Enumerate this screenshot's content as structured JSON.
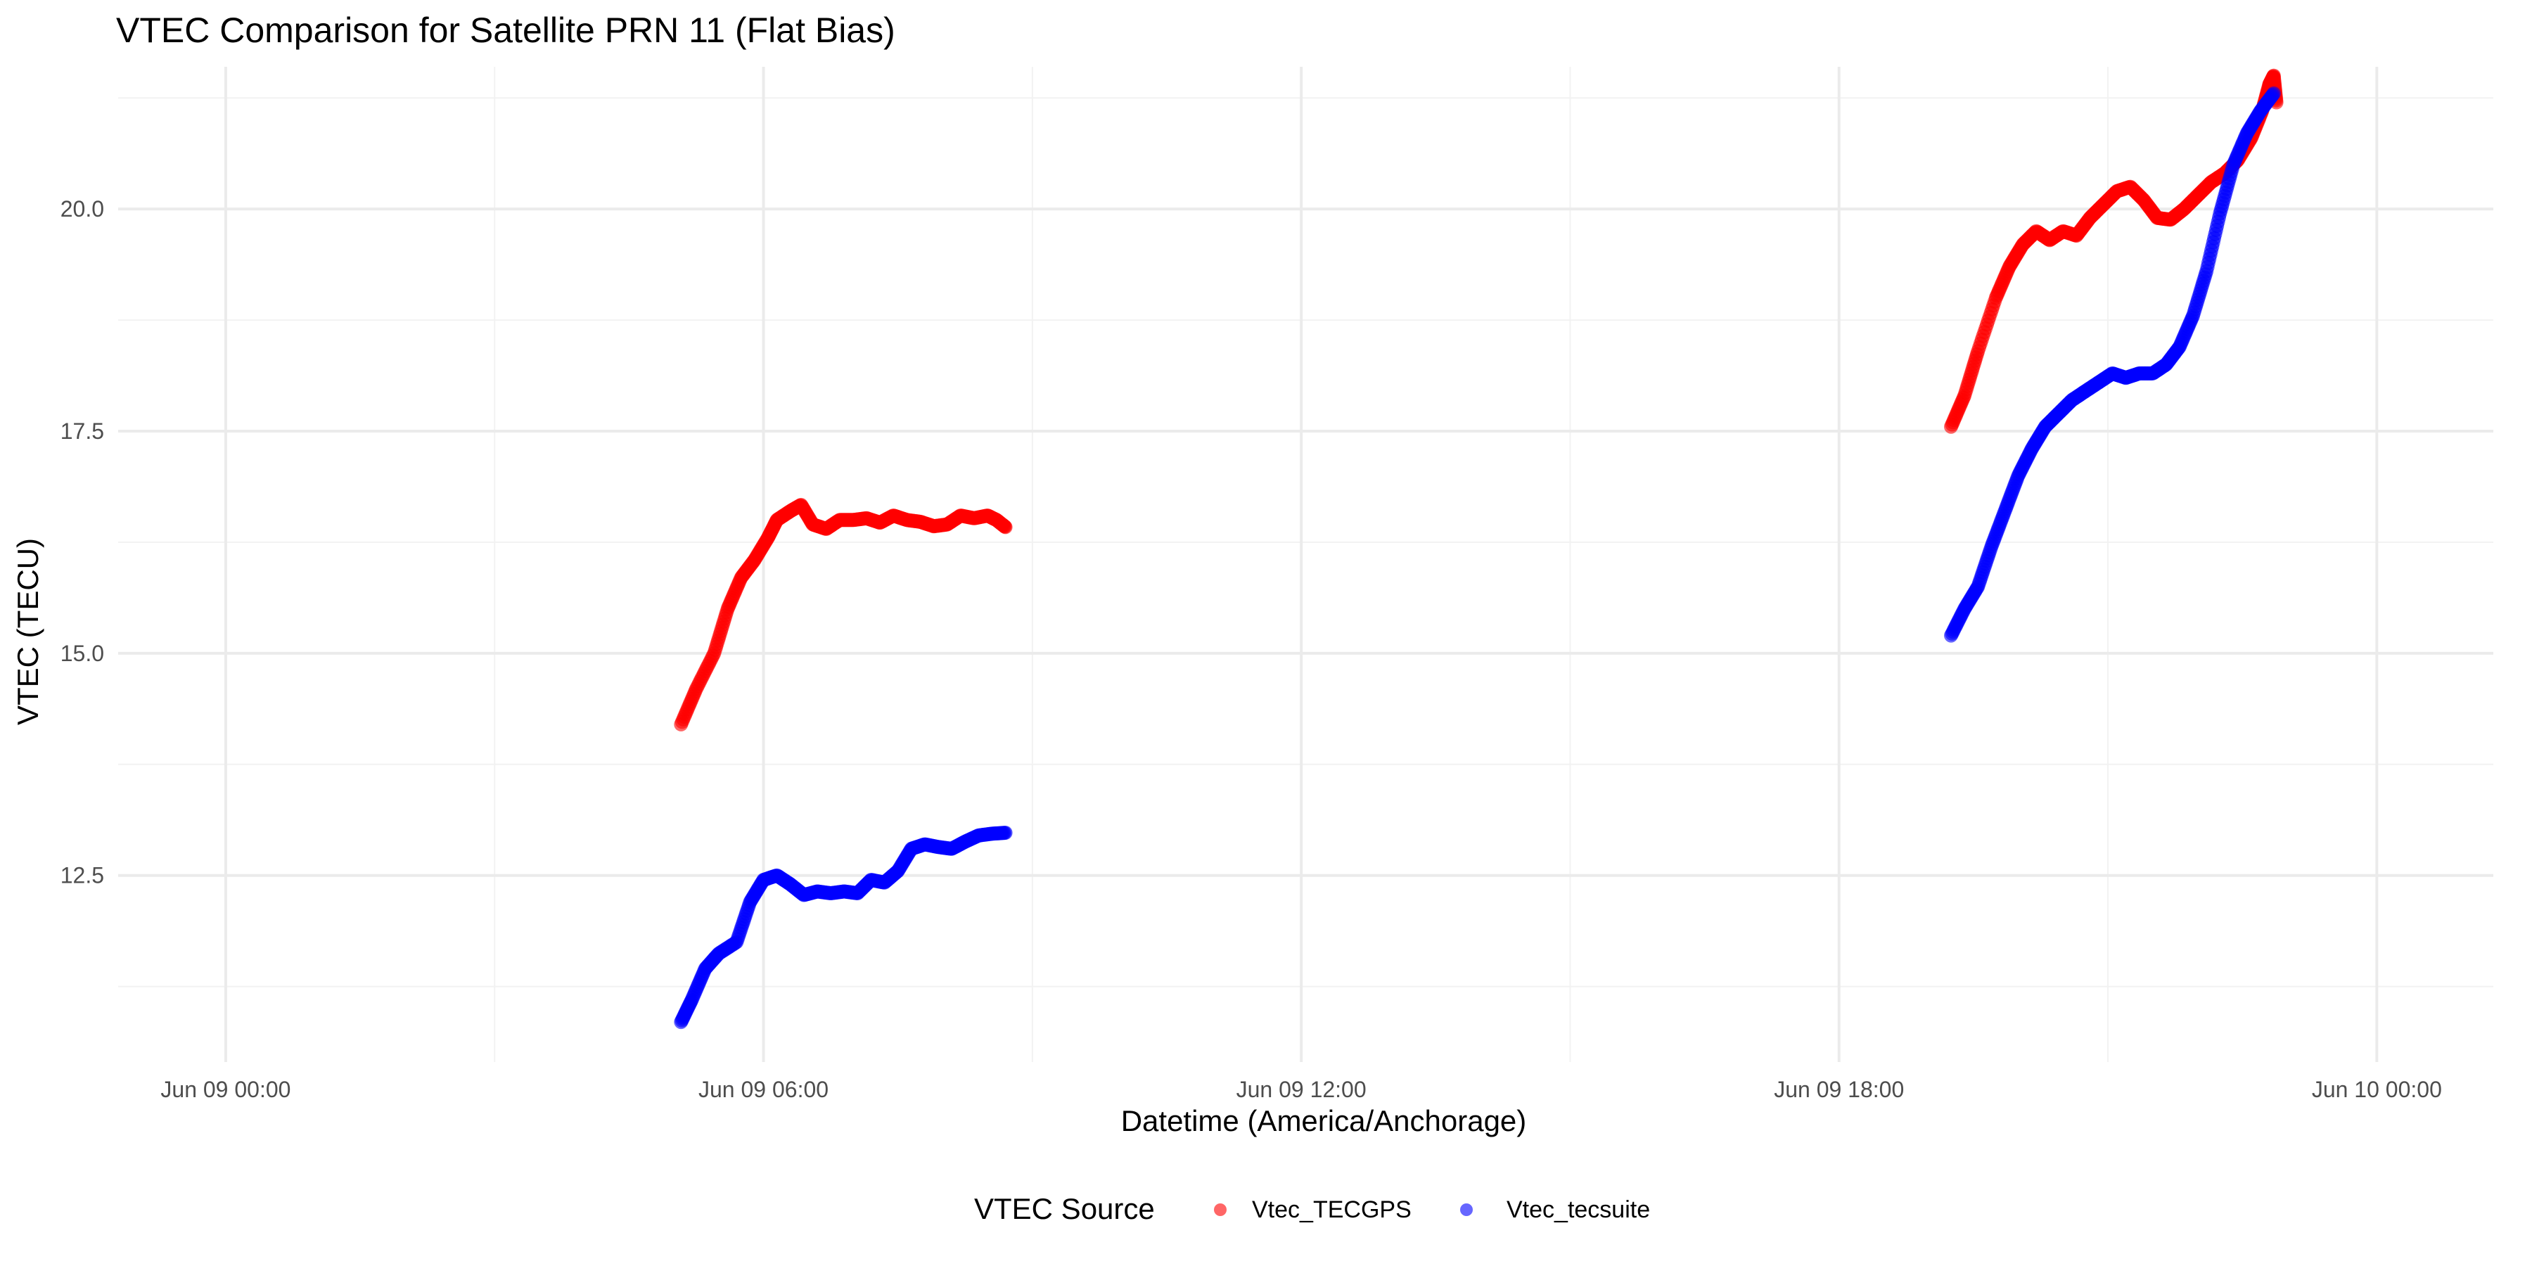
{
  "chart_data": {
    "type": "scatter",
    "title": "VTEC Comparison for Satellite PRN 11 (Flat Bias)",
    "xlabel": "Datetime (America/Anchorage)",
    "ylabel": "VTEC (TECU)",
    "x_unit": "hours since Jun 09 00:00",
    "xlim": [
      -1.2,
      25.3
    ],
    "ylim": [
      10.4,
      21.6
    ],
    "x_ticks": [
      0,
      6,
      12,
      18,
      24
    ],
    "x_tick_labels": [
      "Jun 09 00:00",
      "Jun 09 06:00",
      "Jun 09 12:00",
      "Jun 09 18:00",
      "Jun 10 00:00"
    ],
    "y_ticks": [
      12.5,
      15.0,
      17.5,
      20.0
    ],
    "y_tick_labels": [
      "12.5",
      "15.0",
      "17.5",
      "20.0"
    ],
    "grid": true,
    "legend": {
      "title": "VTEC Source",
      "position": "bottom"
    },
    "series": [
      {
        "name": "Vtec_TECGPS",
        "color": "#ff0000",
        "segments": [
          [
            [
              5.08,
              14.2
            ],
            [
              5.25,
              14.6
            ],
            [
              5.45,
              15.0
            ],
            [
              5.6,
              15.5
            ],
            [
              5.75,
              15.85
            ],
            [
              5.9,
              16.05
            ],
            [
              6.05,
              16.3
            ],
            [
              6.15,
              16.5
            ],
            [
              6.3,
              16.6
            ],
            [
              6.42,
              16.67
            ],
            [
              6.55,
              16.45
            ],
            [
              6.7,
              16.4
            ],
            [
              6.85,
              16.5
            ],
            [
              7.0,
              16.5
            ],
            [
              7.15,
              16.52
            ],
            [
              7.3,
              16.47
            ],
            [
              7.45,
              16.55
            ],
            [
              7.6,
              16.5
            ],
            [
              7.75,
              16.48
            ],
            [
              7.9,
              16.43
            ],
            [
              8.05,
              16.45
            ],
            [
              8.2,
              16.55
            ],
            [
              8.35,
              16.52
            ],
            [
              8.5,
              16.55
            ],
            [
              8.6,
              16.5
            ],
            [
              8.7,
              16.42
            ]
          ],
          [
            [
              19.25,
              17.55
            ],
            [
              19.4,
              17.9
            ],
            [
              19.55,
              18.4
            ],
            [
              19.75,
              19.0
            ],
            [
              19.9,
              19.35
            ],
            [
              20.05,
              19.6
            ],
            [
              20.2,
              19.75
            ],
            [
              20.35,
              19.65
            ],
            [
              20.5,
              19.75
            ],
            [
              20.65,
              19.7
            ],
            [
              20.8,
              19.9
            ],
            [
              20.95,
              20.05
            ],
            [
              21.1,
              20.2
            ],
            [
              21.25,
              20.25
            ],
            [
              21.4,
              20.1
            ],
            [
              21.55,
              19.9
            ],
            [
              21.7,
              19.88
            ],
            [
              21.85,
              20.0
            ],
            [
              22.0,
              20.15
            ],
            [
              22.15,
              20.3
            ],
            [
              22.3,
              20.4
            ],
            [
              22.45,
              20.55
            ],
            [
              22.6,
              20.8
            ],
            [
              22.72,
              21.1
            ],
            [
              22.8,
              21.4
            ],
            [
              22.85,
              21.5
            ],
            [
              22.88,
              21.2
            ]
          ]
        ]
      },
      {
        "name": "Vtec_tecsuite",
        "color": "#0000ff",
        "segments": [
          [
            [
              5.08,
              10.85
            ],
            [
              5.2,
              11.1
            ],
            [
              5.35,
              11.45
            ],
            [
              5.5,
              11.62
            ],
            [
              5.7,
              11.75
            ],
            [
              5.85,
              12.2
            ],
            [
              6.0,
              12.45
            ],
            [
              6.15,
              12.5
            ],
            [
              6.3,
              12.4
            ],
            [
              6.45,
              12.28
            ],
            [
              6.6,
              12.32
            ],
            [
              6.75,
              12.3
            ],
            [
              6.9,
              12.32
            ],
            [
              7.05,
              12.3
            ],
            [
              7.2,
              12.45
            ],
            [
              7.35,
              12.42
            ],
            [
              7.5,
              12.55
            ],
            [
              7.65,
              12.8
            ],
            [
              7.8,
              12.85
            ],
            [
              7.95,
              12.82
            ],
            [
              8.1,
              12.8
            ],
            [
              8.25,
              12.88
            ],
            [
              8.4,
              12.95
            ],
            [
              8.55,
              12.97
            ],
            [
              8.7,
              12.98
            ]
          ],
          [
            [
              19.25,
              15.2
            ],
            [
              19.4,
              15.5
            ],
            [
              19.55,
              15.75
            ],
            [
              19.7,
              16.2
            ],
            [
              19.85,
              16.6
            ],
            [
              20.0,
              17.0
            ],
            [
              20.15,
              17.3
            ],
            [
              20.3,
              17.55
            ],
            [
              20.45,
              17.7
            ],
            [
              20.6,
              17.85
            ],
            [
              20.75,
              17.95
            ],
            [
              20.9,
              18.05
            ],
            [
              21.05,
              18.15
            ],
            [
              21.2,
              18.1
            ],
            [
              21.35,
              18.15
            ],
            [
              21.5,
              18.15
            ],
            [
              21.65,
              18.25
            ],
            [
              21.8,
              18.45
            ],
            [
              21.95,
              18.8
            ],
            [
              22.1,
              19.3
            ],
            [
              22.25,
              19.95
            ],
            [
              22.4,
              20.5
            ],
            [
              22.55,
              20.85
            ],
            [
              22.7,
              21.1
            ],
            [
              22.85,
              21.3
            ]
          ]
        ]
      }
    ]
  }
}
